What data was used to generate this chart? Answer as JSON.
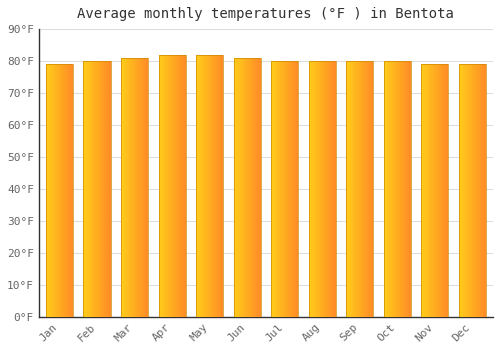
{
  "months": [
    "Jan",
    "Feb",
    "Mar",
    "Apr",
    "May",
    "Jun",
    "Jul",
    "Aug",
    "Sep",
    "Oct",
    "Nov",
    "Dec"
  ],
  "values": [
    79,
    80,
    81,
    82,
    82,
    81,
    80,
    80,
    80,
    80,
    79,
    79
  ],
  "bar_color_left": "#FFCC33",
  "bar_color_right": "#F5A000",
  "title": "Average monthly temperatures (°F ) in Bentota",
  "ylim": [
    0,
    90
  ],
  "yticks": [
    0,
    10,
    20,
    30,
    40,
    50,
    60,
    70,
    80,
    90
  ],
  "ytick_labels": [
    "0°F",
    "10°F",
    "20°F",
    "30°F",
    "40°F",
    "50°F",
    "60°F",
    "70°F",
    "80°F",
    "90°F"
  ],
  "background_color": "#FFFFFF",
  "plot_bg_color": "#FFFFFF",
  "grid_color": "#DDDDDD",
  "title_fontsize": 10,
  "tick_fontsize": 8,
  "bar_width": 0.72
}
